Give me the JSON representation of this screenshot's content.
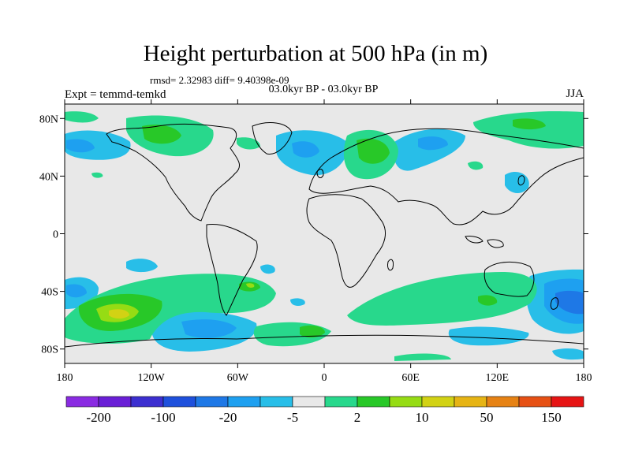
{
  "title": "Height perturbation at 500 hPa (in m)",
  "stats": "rmsd= 2.32983  diff= 9.40398e-09",
  "period": "03.0kyr BP - 03.0kyr BP",
  "experiment": "Expt = temmd-temkd",
  "season": "JJA",
  "lat_ticks": [
    {
      "label": "80N",
      "value": 80
    },
    {
      "label": "40N",
      "value": 40
    },
    {
      "label": "0",
      "value": 0
    },
    {
      "label": "40S",
      "value": -40
    },
    {
      "label": "80S",
      "value": -80
    }
  ],
  "lon_ticks": [
    {
      "label": "180",
      "value": -180
    },
    {
      "label": "120W",
      "value": -120
    },
    {
      "label": "60W",
      "value": -60
    },
    {
      "label": "0",
      "value": 0
    },
    {
      "label": "60E",
      "value": 60
    },
    {
      "label": "120E",
      "value": 120
    },
    {
      "label": "180",
      "value": 180
    }
  ],
  "colorbar": {
    "colors": [
      "#8a2be2",
      "#6a1fd6",
      "#3c2fd0",
      "#1e50dc",
      "#1e78e6",
      "#1ea0f0",
      "#28bee8",
      "#e8e8e8",
      "#28d88c",
      "#28c828",
      "#96dc14",
      "#d2d214",
      "#e6b414",
      "#e68214",
      "#e65014",
      "#e61414"
    ],
    "labels": [
      {
        "text": "-200",
        "boundary": 1
      },
      {
        "text": "-100",
        "boundary": 3
      },
      {
        "text": "-20",
        "boundary": 5
      },
      {
        "text": "-5",
        "boundary": 7
      },
      {
        "text": "2",
        "boundary": 9
      },
      {
        "text": "10",
        "boundary": 11
      },
      {
        "text": "50",
        "boundary": 13
      },
      {
        "text": "150",
        "boundary": 15
      }
    ]
  },
  "colors": {
    "background": "#e8e8e8",
    "land_outline": "#000000",
    "blue_light": "#28bee8",
    "blue_mid": "#1ea0f0",
    "blue_dark": "#1e78e6",
    "green_light": "#28d88c",
    "green_mid": "#28c828",
    "green_yellow": "#96dc14"
  }
}
